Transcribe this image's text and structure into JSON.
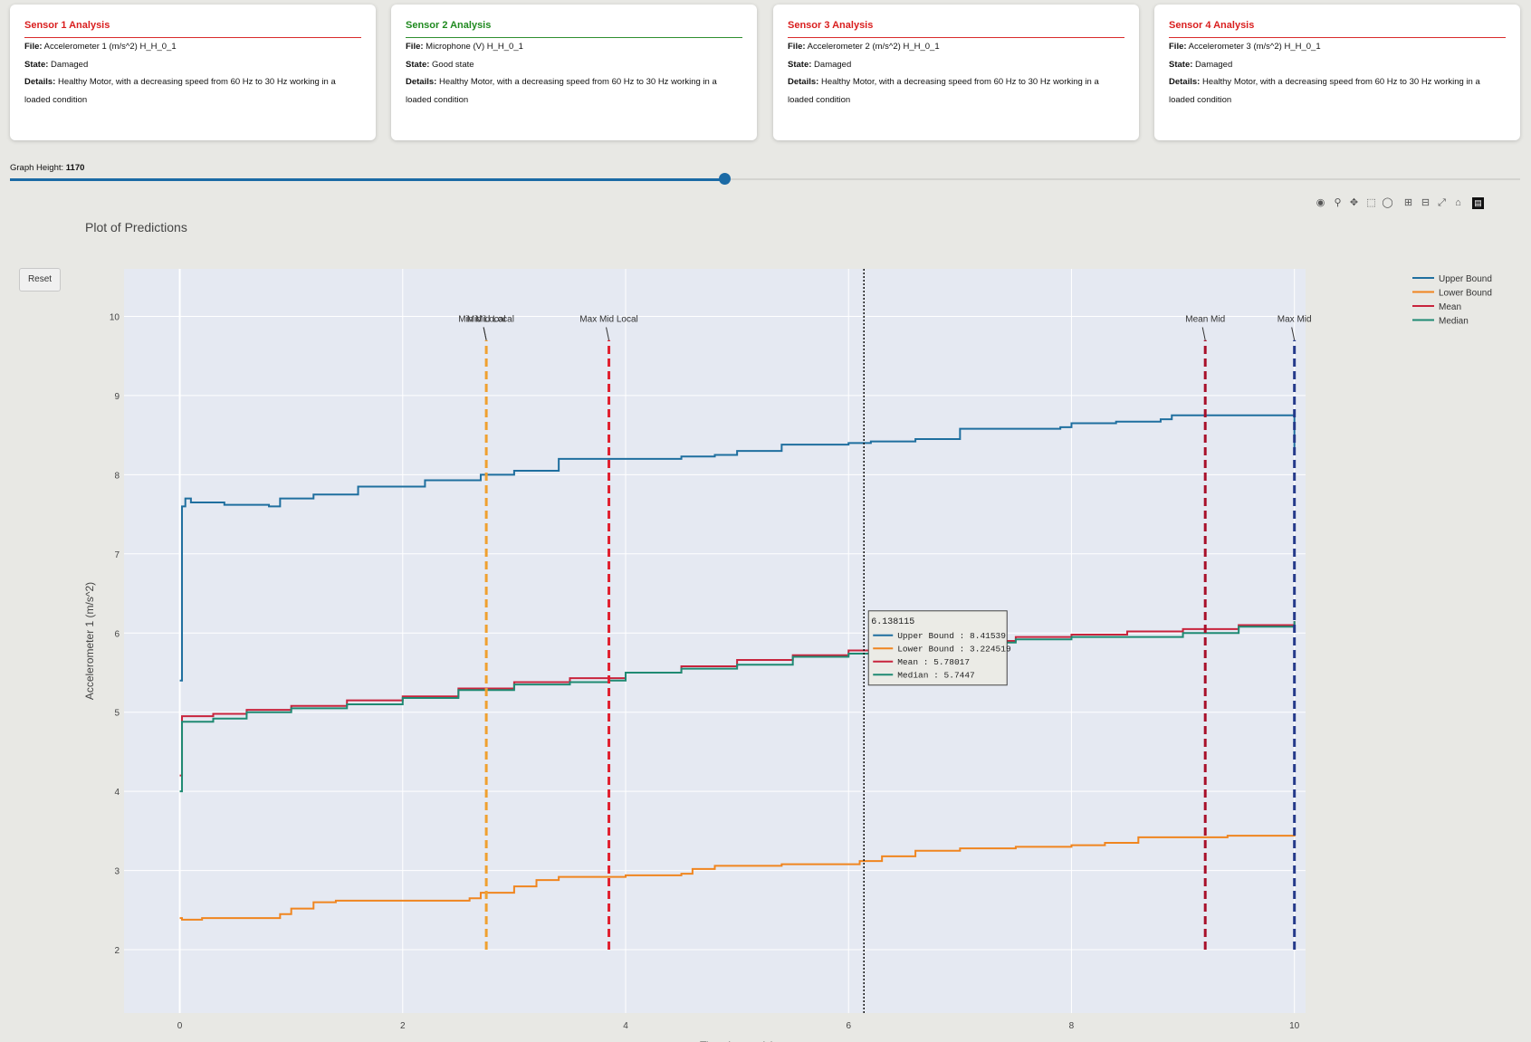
{
  "cards": [
    {
      "title": "Sensor 1 Analysis",
      "file_label": "File:",
      "file": "Accelerometer 1 (m/s^2) H_H_0_1",
      "state_label": "State:",
      "state": "Damaged",
      "details_label": "Details:",
      "details": "Healthy Motor, with a decreasing speed from 60 Hz to 30 Hz working in a loaded condition"
    },
    {
      "title": "Sensor 2 Analysis",
      "file_label": "File:",
      "file": "Microphone (V) H_H_0_1",
      "state_label": "State:",
      "state": "Good state",
      "details_label": "Details:",
      "details": "Healthy Motor, with a decreasing speed from 60 Hz to 30 Hz working in a loaded condition"
    },
    {
      "title": "Sensor 3 Analysis",
      "file_label": "File:",
      "file": "Accelerometer 2 (m/s^2) H_H_0_1",
      "state_label": "State:",
      "state": "Damaged",
      "details_label": "Details:",
      "details": "Healthy Motor, with a decreasing speed from 60 Hz to 30 Hz working in a loaded condition"
    },
    {
      "title": "Sensor 4 Analysis",
      "file_label": "File:",
      "file": "Accelerometer 3 (m/s^2) H_H_0_1",
      "state_label": "State:",
      "state": "Damaged",
      "details_label": "Details:",
      "details": "Healthy Motor, with a decreasing speed from 60 Hz to 30 Hz working in a loaded condition"
    }
  ],
  "slider": {
    "label": "Graph Height:",
    "value": "1170",
    "fraction": 0.473
  },
  "plot": {
    "title": "Plot of Predictions",
    "reset_label": "Reset"
  },
  "modebar_icons": [
    "camera-icon",
    "zoom-icon",
    "pan-icon",
    "box-select-icon",
    "lasso-icon",
    "zoom-in-icon",
    "zoom-out-icon",
    "autoscale-icon",
    "home-icon",
    "plotly-logo-icon"
  ],
  "colors": {
    "upper": "#1f6f9f",
    "lower": "#f0851f",
    "mean": "#c8243d",
    "median": "#1f8a73",
    "min_mid_local": "#f0a030",
    "max_mid_local": "#e0202f",
    "mean_mid": "#a8102a",
    "max_mid": "#253a8a",
    "damaged": "#d91e1e",
    "good": "#1f8a1f",
    "plot_bg": "#e5e9f2"
  },
  "chart_data": {
    "type": "line",
    "xlabel": "Time (seconds)",
    "ylabel": "Accelerometer 1 (m/s^2)",
    "xlim": [
      -0.5,
      10.1
    ],
    "ylim": [
      1.2,
      10.6
    ],
    "xticks": [
      0,
      2,
      4,
      6,
      8,
      10
    ],
    "yticks": [
      2,
      3,
      4,
      5,
      6,
      7,
      8,
      9,
      10
    ],
    "legend_position": "top-right",
    "series": [
      {
        "name": "Upper Bound",
        "key": "upper",
        "x": [
          0,
          0.02,
          0.05,
          0.1,
          0.2,
          0.4,
          0.8,
          0.9,
          1.2,
          1.6,
          2.2,
          2.7,
          3.0,
          3.4,
          4.2,
          4.5,
          4.8,
          5.0,
          5.4,
          6.0,
          6.2,
          6.6,
          7.0,
          7.5,
          7.9,
          8.0,
          8.4,
          8.8,
          8.9,
          9.6,
          9.9,
          10.0
        ],
        "y": [
          5.4,
          7.6,
          7.7,
          7.65,
          7.65,
          7.62,
          7.6,
          7.7,
          7.75,
          7.85,
          7.93,
          8.0,
          8.05,
          8.2,
          8.2,
          8.23,
          8.25,
          8.3,
          8.38,
          8.4,
          8.42,
          8.45,
          8.58,
          8.58,
          8.6,
          8.65,
          8.67,
          8.7,
          8.75,
          8.75,
          8.75,
          8.3
        ]
      },
      {
        "name": "Lower Bound",
        "key": "lower",
        "x": [
          0,
          0.02,
          0.05,
          0.2,
          0.4,
          0.8,
          0.9,
          1.0,
          1.2,
          1.4,
          2.0,
          2.6,
          2.7,
          3.0,
          3.2,
          3.4,
          4.0,
          4.5,
          4.6,
          4.8,
          5.4,
          5.98,
          6.1,
          6.3,
          6.6,
          7.0,
          7.5,
          8.0,
          8.3,
          8.6,
          9.0,
          9.4,
          9.7,
          10.0
        ],
        "y": [
          2.4,
          2.38,
          2.38,
          2.4,
          2.4,
          2.4,
          2.45,
          2.52,
          2.6,
          2.62,
          2.62,
          2.65,
          2.72,
          2.8,
          2.88,
          2.92,
          2.94,
          2.96,
          3.02,
          3.06,
          3.08,
          3.08,
          3.12,
          3.18,
          3.25,
          3.28,
          3.3,
          3.32,
          3.35,
          3.42,
          3.42,
          3.44,
          3.44,
          3.5
        ]
      },
      {
        "name": "Mean",
        "key": "mean",
        "x": [
          0,
          0.02,
          0.1,
          0.3,
          0.6,
          1.0,
          1.5,
          2.0,
          2.5,
          3.0,
          3.5,
          4.0,
          4.5,
          5.0,
          5.5,
          6.0,
          6.5,
          7.0,
          7.5,
          8.0,
          8.5,
          9.0,
          9.5,
          10.0
        ],
        "y": [
          4.2,
          4.95,
          4.95,
          4.98,
          5.03,
          5.08,
          5.15,
          5.2,
          5.3,
          5.38,
          5.43,
          5.5,
          5.58,
          5.66,
          5.72,
          5.78,
          5.83,
          5.9,
          5.95,
          5.98,
          6.02,
          6.05,
          6.1,
          6.15
        ]
      },
      {
        "name": "Median",
        "key": "median",
        "x": [
          0,
          0.02,
          0.1,
          0.3,
          0.6,
          1.0,
          1.5,
          2.0,
          2.5,
          3.0,
          3.5,
          3.85,
          4.0,
          4.5,
          5.0,
          5.5,
          6.0,
          6.5,
          7.0,
          7.5,
          8.0,
          8.5,
          9.0,
          9.5,
          10.0
        ],
        "y": [
          4.0,
          4.88,
          4.88,
          4.92,
          5.0,
          5.05,
          5.1,
          5.18,
          5.28,
          5.35,
          5.38,
          5.4,
          5.5,
          5.55,
          5.6,
          5.7,
          5.74,
          5.8,
          5.88,
          5.92,
          5.95,
          5.95,
          6.0,
          6.08,
          6.15
        ]
      }
    ],
    "vlines": [
      {
        "name": "Min Mid Local",
        "key": "min_mid_local",
        "x": 2.75,
        "y0": 2.0,
        "y1": 9.7
      },
      {
        "name": "Mid Local",
        "key": "min_mid_local",
        "x": 2.75,
        "y0": 2.0,
        "y1": 9.7
      },
      {
        "name": "Max Mid Local",
        "key": "max_mid_local",
        "x": 3.85,
        "y0": 2.0,
        "y1": 9.7
      },
      {
        "name": "Mean Mid",
        "key": "mean_mid",
        "x": 9.2,
        "y0": 2.0,
        "y1": 9.7
      },
      {
        "name": "Max Mid",
        "key": "max_mid",
        "x": 10.0,
        "y0": 2.0,
        "y1": 9.7
      }
    ],
    "hover": {
      "x": 6.138115,
      "label": "6.138115",
      "rows": [
        {
          "name": "Upper Bound",
          "key": "upper",
          "value": "8.41539"
        },
        {
          "name": "Lower Bound",
          "key": "lower",
          "value": "3.224519"
        },
        {
          "name": "Mean",
          "key": "mean",
          "value": "5.78017"
        },
        {
          "name": "Median",
          "key": "median",
          "value": "5.7447"
        }
      ]
    }
  }
}
